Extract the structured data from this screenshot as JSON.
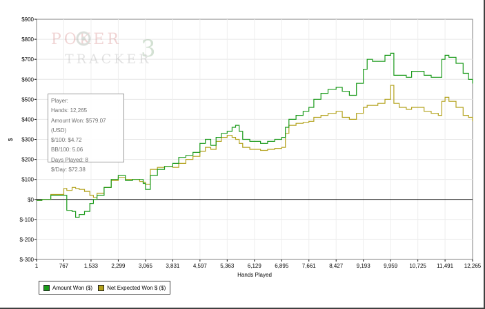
{
  "chart_data": {
    "type": "line",
    "xlabel": "Hands Played",
    "ylabel": "$",
    "xlim": [
      1,
      12265
    ],
    "ylim": [
      -300,
      900
    ],
    "x_ticks": [
      1,
      767,
      1533,
      2299,
      3065,
      3831,
      4597,
      5363,
      6129,
      6895,
      7661,
      8427,
      9193,
      9959,
      10725,
      11491,
      12265
    ],
    "x_tick_labels": [
      "1",
      "767",
      "1,533",
      "2,299",
      "3,065",
      "3,831",
      "4,597",
      "5,363",
      "6,129",
      "6,895",
      "7,661",
      "8,427",
      "9,193",
      "9,959",
      "10,725",
      "11,491",
      "12,265"
    ],
    "y_ticks": [
      -300,
      -200,
      -100,
      0,
      100,
      200,
      300,
      400,
      500,
      600,
      700,
      800,
      900
    ],
    "y_tick_labels": [
      "$-300",
      "$-200",
      "$-100",
      "$0",
      "$100",
      "$200",
      "$300",
      "$400",
      "$500",
      "$600",
      "$700",
      "$800",
      "$900"
    ],
    "grid": true,
    "legend_position": "bottom-left",
    "series": [
      {
        "name": "Amount Won ($)",
        "color": "#1a9a1a",
        "x": [
          1,
          150,
          400,
          767,
          850,
          1000,
          1100,
          1200,
          1350,
          1500,
          1600,
          1700,
          1900,
          2100,
          2299,
          2500,
          2700,
          2900,
          3000,
          3065,
          3200,
          3400,
          3600,
          3831,
          4000,
          4200,
          4400,
          4597,
          4750,
          4900,
          5050,
          5200,
          5363,
          5500,
          5600,
          5700,
          5800,
          6000,
          6129,
          6300,
          6500,
          6700,
          6895,
          7000,
          7100,
          7300,
          7500,
          7661,
          7800,
          8000,
          8200,
          8427,
          8600,
          8800,
          9000,
          9193,
          9300,
          9450,
          9600,
          9800,
          9959,
          10050,
          10200,
          10400,
          10550,
          10725,
          10900,
          11100,
          11300,
          11400,
          11491,
          11600,
          11800,
          12000,
          12150,
          12265
        ],
        "y": [
          -5,
          0,
          20,
          20,
          -55,
          -60,
          -90,
          -75,
          -60,
          -20,
          0,
          20,
          60,
          100,
          120,
          95,
          100,
          100,
          80,
          50,
          120,
          150,
          165,
          180,
          210,
          220,
          235,
          280,
          300,
          270,
          310,
          330,
          340,
          360,
          370,
          340,
          300,
          290,
          290,
          280,
          290,
          300,
          310,
          360,
          400,
          420,
          440,
          460,
          500,
          530,
          550,
          560,
          540,
          520,
          580,
          650,
          700,
          690,
          690,
          720,
          730,
          620,
          620,
          610,
          640,
          640,
          620,
          610,
          610,
          700,
          720,
          710,
          680,
          630,
          600,
          579
        ]
      },
      {
        "name": "Net Expected Won $ ($)",
        "color": "#b3a21c",
        "x": [
          1,
          150,
          400,
          767,
          850,
          1000,
          1100,
          1200,
          1350,
          1500,
          1600,
          1700,
          1900,
          2100,
          2299,
          2500,
          2700,
          2900,
          3000,
          3065,
          3200,
          3400,
          3600,
          3831,
          4000,
          4200,
          4400,
          4597,
          4750,
          4900,
          5050,
          5200,
          5363,
          5500,
          5600,
          5700,
          5800,
          6000,
          6129,
          6300,
          6500,
          6700,
          6895,
          7000,
          7100,
          7300,
          7500,
          7661,
          7800,
          8000,
          8200,
          8427,
          8600,
          8800,
          9000,
          9193,
          9300,
          9450,
          9600,
          9800,
          9959,
          10050,
          10200,
          10400,
          10550,
          10725,
          10900,
          11100,
          11300,
          11400,
          11491,
          11600,
          11800,
          12000,
          12150,
          12265
        ],
        "y": [
          -5,
          0,
          25,
          55,
          45,
          60,
          55,
          50,
          40,
          20,
          10,
          30,
          60,
          95,
          110,
          100,
          100,
          90,
          85,
          75,
          150,
          160,
          165,
          160,
          180,
          200,
          215,
          240,
          260,
          250,
          290,
          310,
          320,
          310,
          300,
          280,
          260,
          250,
          250,
          245,
          250,
          255,
          260,
          330,
          370,
          380,
          385,
          390,
          410,
          420,
          430,
          440,
          410,
          400,
          430,
          460,
          470,
          470,
          480,
          500,
          570,
          480,
          460,
          450,
          460,
          460,
          440,
          430,
          420,
          490,
          510,
          490,
          460,
          420,
          410,
          390
        ]
      }
    ]
  },
  "watermark": {
    "line1": "POKER",
    "line2": "TRACKER",
    "mark": "3",
    "icon": "poker-chip-icon"
  },
  "stats": {
    "player": "Player:",
    "hands": "Hands: 12,265",
    "amount_won": "Amount Won: $579.07 (USD)",
    "per100": "$/100: $4.72",
    "bb100": "BB/100: 5.06",
    "days_played": "Days Played: 8",
    "per_day": "$/Day: $72.38"
  }
}
